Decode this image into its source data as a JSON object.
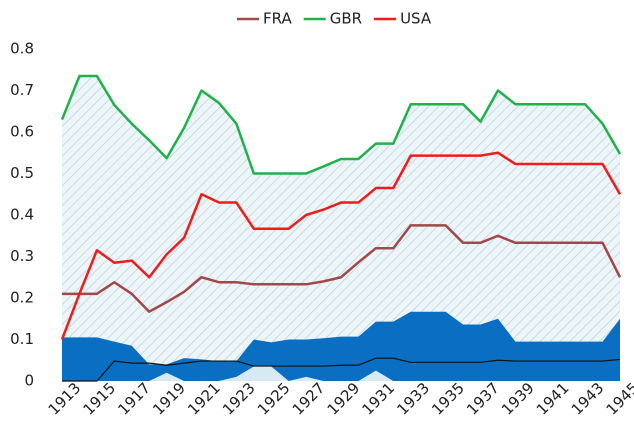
{
  "chart_data": {
    "type": "line",
    "x": [
      1913,
      1914,
      1915,
      1916,
      1917,
      1918,
      1919,
      1920,
      1921,
      1922,
      1923,
      1924,
      1925,
      1926,
      1927,
      1928,
      1929,
      1930,
      1931,
      1932,
      1933,
      1934,
      1935,
      1936,
      1937,
      1938,
      1939,
      1940,
      1941,
      1942,
      1943,
      1944,
      1945
    ],
    "xlim": [
      1913,
      1945
    ],
    "xticks": [
      1913,
      1915,
      1917,
      1919,
      1921,
      1923,
      1925,
      1927,
      1929,
      1931,
      1933,
      1935,
      1937,
      1939,
      1941,
      1943,
      1945
    ],
    "ylim": [
      0,
      0.8
    ],
    "yticks": [
      0,
      0.1,
      0.2,
      0.3,
      0.4,
      0.5,
      0.6,
      0.7,
      0.8
    ],
    "legend": "top",
    "series": [
      {
        "color": "#0a6fc2",
        "style": "area",
        "values": [
          0.105,
          0.105,
          0.105,
          0.095,
          0.085,
          0.04,
          0.04,
          0.055,
          0.052,
          0.048,
          0.048,
          0.1,
          0.093,
          0.1,
          0.1,
          0.103,
          0.107,
          0.107,
          0.143,
          0.143,
          0.167,
          0.167,
          0.167,
          0.136,
          0.136,
          0.15,
          0.095,
          0.095,
          0.095,
          0.095,
          0.095,
          0.095,
          0.15
        ]
      },
      {
        "color": "#d7eaf3",
        "style": "area",
        "values": [
          0,
          0,
          0,
          0,
          0,
          0,
          0.02,
          0,
          0,
          0,
          0.01,
          0.035,
          0.035,
          0,
          0.01,
          0,
          0,
          0,
          0.025,
          0,
          0,
          0,
          0,
          0,
          0,
          0,
          0,
          0,
          0,
          0,
          0,
          0,
          0
        ]
      },
      {
        "color": "#111111",
        "style": "line",
        "values": [
          0,
          0,
          0,
          0.048,
          0.043,
          0.043,
          0.038,
          0.043,
          0.048,
          0.048,
          0.048,
          0.036,
          0.036,
          0.036,
          0.036,
          0.036,
          0.038,
          0.038,
          0.055,
          0.055,
          0.045,
          0.045,
          0.045,
          0.045,
          0.045,
          0.05,
          0.048,
          0.048,
          0.048,
          0.048,
          0.048,
          0.048,
          0.052
        ]
      },
      {
        "name": "FRA",
        "color": "#a0484a",
        "values": [
          0.21,
          0.21,
          0.21,
          0.238,
          0.21,
          0.167,
          0.19,
          0.215,
          0.25,
          0.238,
          0.238,
          0.233,
          0.233,
          0.233,
          0.233,
          0.24,
          0.25,
          0.286,
          0.32,
          0.32,
          0.375,
          0.375,
          0.375,
          0.333,
          0.333,
          0.35,
          0.333,
          0.333,
          0.333,
          0.333,
          0.333,
          0.333,
          0.25
        ]
      },
      {
        "name": "GBR",
        "color": "#1fb24a",
        "hatch": true,
        "values": [
          0.63,
          0.735,
          0.735,
          0.665,
          0.62,
          0.58,
          0.537,
          0.61,
          0.7,
          0.67,
          0.62,
          0.5,
          0.5,
          0.5,
          0.5,
          0.517,
          0.535,
          0.535,
          0.572,
          0.572,
          0.667,
          0.667,
          0.667,
          0.667,
          0.625,
          0.7,
          0.667,
          0.667,
          0.667,
          0.667,
          0.667,
          0.62,
          0.547
        ]
      },
      {
        "name": "USA",
        "color": "#ee1c1c",
        "values": [
          0.1,
          0.21,
          0.315,
          0.285,
          0.29,
          0.25,
          0.305,
          0.345,
          0.45,
          0.43,
          0.43,
          0.367,
          0.367,
          0.367,
          0.4,
          0.413,
          0.43,
          0.43,
          0.465,
          0.465,
          0.543,
          0.543,
          0.543,
          0.543,
          0.543,
          0.55,
          0.523,
          0.523,
          0.523,
          0.523,
          0.523,
          0.523,
          0.45
        ]
      }
    ]
  }
}
